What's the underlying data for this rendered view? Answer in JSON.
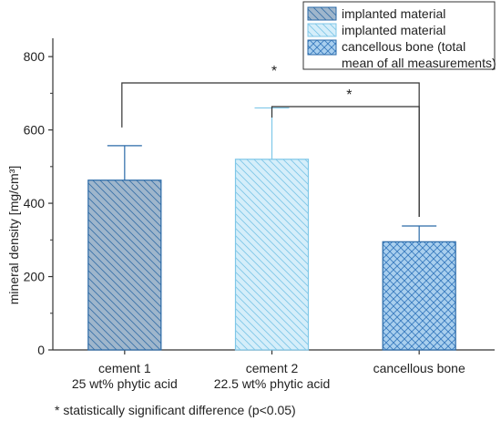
{
  "chart_data": {
    "type": "bar",
    "categories": [
      [
        "cement 1",
        "25 wt% phytic acid"
      ],
      [
        "cement 2",
        "22.5 wt% phytic acid"
      ],
      [
        "cancellous bone"
      ]
    ],
    "values": [
      463,
      520,
      295
    ],
    "error_upper": [
      557,
      660,
      338
    ],
    "ylabel": "mineral density [mg/cm³]",
    "ylim": [
      0,
      850
    ],
    "yticks": [
      0,
      200,
      400,
      600,
      800
    ],
    "grid": false,
    "legend": {
      "placement": "top-right",
      "entries": [
        {
          "label_lines": [
            "implanted material"
          ],
          "fill": "#9fb6cc",
          "hatch": "back-diagonal",
          "hatch_color": "#3a72a8",
          "stroke": "#2a6aa8"
        },
        {
          "label_lines": [
            "implanted material"
          ],
          "fill": "#d5eefa",
          "hatch": "back-diagonal",
          "hatch_color": "#7fc7e8",
          "stroke": "#7fc7e8"
        },
        {
          "label_lines": [
            "cancellous bone (total",
            "mean of all measurements)"
          ],
          "fill": "#a9cfee",
          "hatch": "cross",
          "hatch_color": "#3a7bbf",
          "stroke": "#2a6aa8"
        }
      ]
    },
    "bar_styles": [
      {
        "fill": "#9fb6cc",
        "hatch": "back-diagonal",
        "hatch_color": "#3a72a8",
        "stroke": "#2a6aa8"
      },
      {
        "fill": "#d5eefa",
        "hatch": "back-diagonal",
        "hatch_color": "#7fc7e8",
        "stroke": "#7fc7e8"
      },
      {
        "fill": "#a9cfee",
        "hatch": "cross",
        "hatch_color": "#3a7bbf",
        "stroke": "#2a6aa8"
      }
    ],
    "significance": [
      {
        "from": 0,
        "to": 2,
        "label": "*"
      },
      {
        "from": 1,
        "to": 2,
        "label": "*"
      }
    ],
    "footnote": "* statistically significant difference (p<0.05)"
  }
}
